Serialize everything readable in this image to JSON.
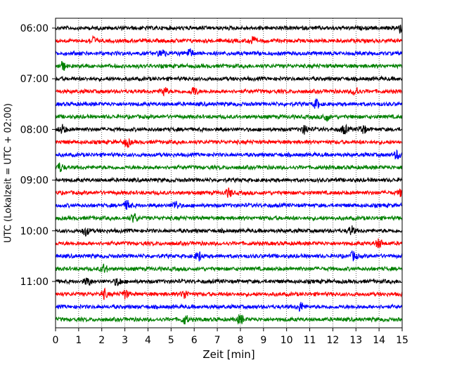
{
  "chart_data": {
    "type": "line",
    "xlabel": "Zeit  [min]",
    "ylabel": "UTC (Lokalzeit = UTC + 02:00)",
    "xlim": [
      0,
      15
    ],
    "x_ticks": [
      0,
      1,
      2,
      3,
      4,
      5,
      6,
      7,
      8,
      9,
      10,
      11,
      12,
      13,
      14,
      15
    ],
    "x_tick_labels": [
      "0",
      "1",
      "2",
      "3",
      "4",
      "5",
      "6",
      "7",
      "8",
      "9",
      "10",
      "11",
      "12",
      "13",
      "14",
      "15"
    ],
    "y_tick_labels": [
      "06:00",
      "07:00",
      "08:00",
      "09:00",
      "10:00",
      "11:00"
    ],
    "grid": "vertical dotted",
    "traces_per_hour": 4,
    "trace_minutes": 15,
    "start_time": "06:00",
    "end_time": "11:45",
    "color_cycle": [
      "#000000",
      "#ff0000",
      "#0000ff",
      "#008000"
    ],
    "traces": [
      {
        "start": "06:00",
        "events": [
          14.9
        ]
      },
      {
        "start": "06:15",
        "events": [
          1.6,
          8.5
        ]
      },
      {
        "start": "06:30",
        "events": [
          4.6,
          5.8
        ]
      },
      {
        "start": "06:45",
        "events": [
          0.3
        ]
      },
      {
        "start": "07:00",
        "events": []
      },
      {
        "start": "07:15",
        "events": [
          4.7,
          6.0,
          13.0
        ]
      },
      {
        "start": "07:30",
        "events": [
          11.3
        ]
      },
      {
        "start": "07:45",
        "events": [
          11.7
        ]
      },
      {
        "start": "08:00",
        "events": [
          0.3,
          10.8,
          12.5,
          13.3
        ]
      },
      {
        "start": "08:15",
        "events": [
          3.1
        ]
      },
      {
        "start": "08:30",
        "events": [
          14.8
        ]
      },
      {
        "start": "08:45",
        "events": [
          0.2
        ]
      },
      {
        "start": "09:00",
        "events": []
      },
      {
        "start": "09:15",
        "events": [
          7.5,
          15.0
        ]
      },
      {
        "start": "09:30",
        "events": [
          3.1,
          5.2
        ]
      },
      {
        "start": "09:45",
        "events": [
          3.4
        ]
      },
      {
        "start": "10:00",
        "events": [
          1.3,
          12.8
        ]
      },
      {
        "start": "10:15",
        "events": [
          14.0
        ]
      },
      {
        "start": "10:30",
        "events": [
          6.2,
          12.9
        ]
      },
      {
        "start": "10:45",
        "events": [
          2.1
        ]
      },
      {
        "start": "11:00",
        "events": [
          1.4,
          2.7
        ]
      },
      {
        "start": "11:15",
        "events": [
          2.1,
          3.0,
          5.6
        ]
      },
      {
        "start": "11:30",
        "events": [
          10.6
        ]
      },
      {
        "start": "11:45",
        "events": [
          5.6,
          8.0
        ]
      }
    ]
  }
}
